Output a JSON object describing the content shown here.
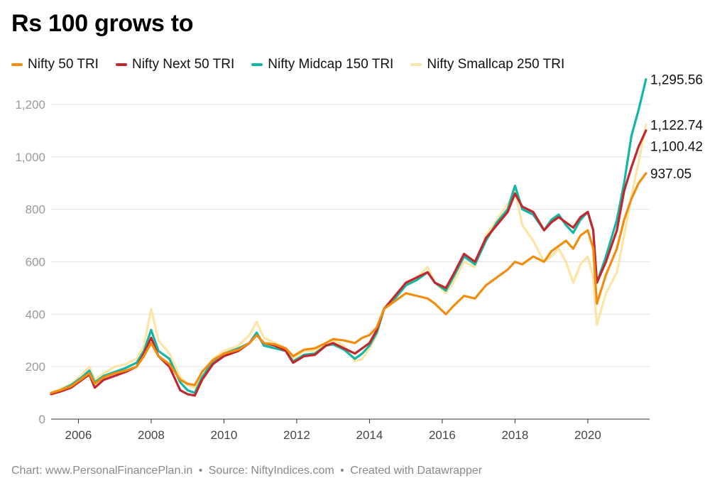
{
  "chart_data": {
    "type": "line",
    "title": "Rs 100 grows to",
    "xlabel": "",
    "ylabel": "",
    "xlim": [
      2005.25,
      2021.7
    ],
    "ylim": [
      0,
      1300
    ],
    "x_ticks": [
      "2006",
      "2008",
      "2010",
      "2012",
      "2014",
      "2016",
      "2018",
      "2020"
    ],
    "y_ticks": [
      "0",
      "200",
      "400",
      "600",
      "800",
      "1,000",
      "1,200"
    ],
    "legend_position": "top-left",
    "grid": "horizontal",
    "series": [
      {
        "name": "Nifty Smallcap 250 TRI",
        "color": "#fce5a4",
        "end_label": "1,122.74",
        "points": [
          [
            2005.25,
            100
          ],
          [
            2005.5,
            115
          ],
          [
            2005.8,
            135
          ],
          [
            2006.1,
            170
          ],
          [
            2006.3,
            200
          ],
          [
            2006.45,
            150
          ],
          [
            2006.7,
            175
          ],
          [
            2007.0,
            200
          ],
          [
            2007.3,
            210
          ],
          [
            2007.6,
            230
          ],
          [
            2007.8,
            280
          ],
          [
            2008.0,
            420
          ],
          [
            2008.2,
            300
          ],
          [
            2008.5,
            250
          ],
          [
            2008.8,
            160
          ],
          [
            2009.0,
            130
          ],
          [
            2009.2,
            120
          ],
          [
            2009.4,
            180
          ],
          [
            2009.7,
            230
          ],
          [
            2010.0,
            260
          ],
          [
            2010.4,
            280
          ],
          [
            2010.7,
            320
          ],
          [
            2010.9,
            370
          ],
          [
            2011.1,
            310
          ],
          [
            2011.4,
            290
          ],
          [
            2011.7,
            270
          ],
          [
            2011.9,
            230
          ],
          [
            2012.2,
            260
          ],
          [
            2012.5,
            260
          ],
          [
            2012.8,
            290
          ],
          [
            2013.0,
            300
          ],
          [
            2013.3,
            280
          ],
          [
            2013.6,
            220
          ],
          [
            2013.8,
            230
          ],
          [
            2014.0,
            270
          ],
          [
            2014.2,
            320
          ],
          [
            2014.4,
            420
          ],
          [
            2014.7,
            470
          ],
          [
            2015.0,
            510
          ],
          [
            2015.3,
            540
          ],
          [
            2015.6,
            580
          ],
          [
            2015.8,
            520
          ],
          [
            2016.1,
            480
          ],
          [
            2016.3,
            520
          ],
          [
            2016.6,
            600
          ],
          [
            2016.9,
            580
          ],
          [
            2017.2,
            700
          ],
          [
            2017.5,
            760
          ],
          [
            2017.8,
            820
          ],
          [
            2018.0,
            870
          ],
          [
            2018.2,
            740
          ],
          [
            2018.5,
            680
          ],
          [
            2018.8,
            600
          ],
          [
            2019.0,
            620
          ],
          [
            2019.2,
            650
          ],
          [
            2019.4,
            600
          ],
          [
            2019.6,
            520
          ],
          [
            2019.8,
            590
          ],
          [
            2020.0,
            620
          ],
          [
            2020.15,
            540
          ],
          [
            2020.25,
            360
          ],
          [
            2020.5,
            480
          ],
          [
            2020.8,
            560
          ],
          [
            2021.0,
            700
          ],
          [
            2021.2,
            850
          ],
          [
            2021.4,
            980
          ],
          [
            2021.6,
            1122.74
          ]
        ]
      },
      {
        "name": "Nifty Midcap 150 TRI",
        "color": "#15b5a4",
        "end_label": "1,295.56",
        "points": [
          [
            2005.25,
            100
          ],
          [
            2005.5,
            110
          ],
          [
            2005.8,
            130
          ],
          [
            2006.1,
            160
          ],
          [
            2006.3,
            185
          ],
          [
            2006.45,
            140
          ],
          [
            2006.7,
            165
          ],
          [
            2007.0,
            180
          ],
          [
            2007.3,
            195
          ],
          [
            2007.6,
            215
          ],
          [
            2007.8,
            260
          ],
          [
            2008.0,
            340
          ],
          [
            2008.2,
            260
          ],
          [
            2008.5,
            230
          ],
          [
            2008.8,
            140
          ],
          [
            2009.0,
            110
          ],
          [
            2009.2,
            100
          ],
          [
            2009.4,
            160
          ],
          [
            2009.7,
            220
          ],
          [
            2010.0,
            250
          ],
          [
            2010.4,
            270
          ],
          [
            2010.7,
            290
          ],
          [
            2010.9,
            330
          ],
          [
            2011.1,
            280
          ],
          [
            2011.4,
            270
          ],
          [
            2011.7,
            260
          ],
          [
            2011.9,
            220
          ],
          [
            2012.2,
            245
          ],
          [
            2012.5,
            250
          ],
          [
            2012.8,
            280
          ],
          [
            2013.0,
            285
          ],
          [
            2013.3,
            265
          ],
          [
            2013.6,
            230
          ],
          [
            2013.8,
            250
          ],
          [
            2014.0,
            280
          ],
          [
            2014.2,
            330
          ],
          [
            2014.4,
            420
          ],
          [
            2014.7,
            460
          ],
          [
            2015.0,
            510
          ],
          [
            2015.3,
            530
          ],
          [
            2015.6,
            560
          ],
          [
            2015.8,
            520
          ],
          [
            2016.1,
            490
          ],
          [
            2016.3,
            540
          ],
          [
            2016.6,
            620
          ],
          [
            2016.9,
            590
          ],
          [
            2017.2,
            680
          ],
          [
            2017.5,
            750
          ],
          [
            2017.8,
            800
          ],
          [
            2018.0,
            890
          ],
          [
            2018.2,
            800
          ],
          [
            2018.5,
            780
          ],
          [
            2018.8,
            720
          ],
          [
            2019.0,
            760
          ],
          [
            2019.2,
            780
          ],
          [
            2019.4,
            740
          ],
          [
            2019.6,
            710
          ],
          [
            2019.8,
            760
          ],
          [
            2020.0,
            790
          ],
          [
            2020.15,
            720
          ],
          [
            2020.25,
            520
          ],
          [
            2020.5,
            620
          ],
          [
            2020.8,
            760
          ],
          [
            2021.0,
            900
          ],
          [
            2021.2,
            1080
          ],
          [
            2021.4,
            1180
          ],
          [
            2021.6,
            1295.56
          ]
        ]
      },
      {
        "name": "Nifty Next 50 TRI",
        "color": "#c1272d",
        "end_label": "1,100.42",
        "points": [
          [
            2005.25,
            95
          ],
          [
            2005.5,
            105
          ],
          [
            2005.8,
            120
          ],
          [
            2006.1,
            150
          ],
          [
            2006.3,
            170
          ],
          [
            2006.45,
            120
          ],
          [
            2006.7,
            150
          ],
          [
            2007.0,
            165
          ],
          [
            2007.3,
            180
          ],
          [
            2007.6,
            200
          ],
          [
            2007.8,
            250
          ],
          [
            2008.0,
            310
          ],
          [
            2008.2,
            240
          ],
          [
            2008.5,
            200
          ],
          [
            2008.8,
            110
          ],
          [
            2009.0,
            95
          ],
          [
            2009.2,
            90
          ],
          [
            2009.4,
            150
          ],
          [
            2009.7,
            210
          ],
          [
            2010.0,
            240
          ],
          [
            2010.4,
            260
          ],
          [
            2010.7,
            290
          ],
          [
            2010.9,
            320
          ],
          [
            2011.1,
            290
          ],
          [
            2011.4,
            280
          ],
          [
            2011.7,
            260
          ],
          [
            2011.9,
            215
          ],
          [
            2012.2,
            240
          ],
          [
            2012.5,
            245
          ],
          [
            2012.8,
            280
          ],
          [
            2013.0,
            290
          ],
          [
            2013.3,
            270
          ],
          [
            2013.6,
            250
          ],
          [
            2013.8,
            270
          ],
          [
            2014.0,
            290
          ],
          [
            2014.2,
            340
          ],
          [
            2014.4,
            420
          ],
          [
            2014.7,
            470
          ],
          [
            2015.0,
            520
          ],
          [
            2015.3,
            540
          ],
          [
            2015.6,
            560
          ],
          [
            2015.8,
            520
          ],
          [
            2016.1,
            500
          ],
          [
            2016.3,
            550
          ],
          [
            2016.6,
            630
          ],
          [
            2016.9,
            600
          ],
          [
            2017.2,
            690
          ],
          [
            2017.5,
            740
          ],
          [
            2017.8,
            790
          ],
          [
            2018.0,
            860
          ],
          [
            2018.2,
            810
          ],
          [
            2018.5,
            790
          ],
          [
            2018.8,
            720
          ],
          [
            2019.0,
            750
          ],
          [
            2019.2,
            770
          ],
          [
            2019.4,
            750
          ],
          [
            2019.6,
            730
          ],
          [
            2019.8,
            770
          ],
          [
            2020.0,
            790
          ],
          [
            2020.15,
            720
          ],
          [
            2020.25,
            520
          ],
          [
            2020.5,
            600
          ],
          [
            2020.8,
            720
          ],
          [
            2021.0,
            870
          ],
          [
            2021.2,
            960
          ],
          [
            2021.4,
            1040
          ],
          [
            2021.6,
            1100.42
          ]
        ]
      },
      {
        "name": "Nifty 50 TRI",
        "color": "#f28c0f",
        "end_label": "937.05",
        "points": [
          [
            2005.25,
            100
          ],
          [
            2005.5,
            110
          ],
          [
            2005.8,
            125
          ],
          [
            2006.1,
            155
          ],
          [
            2006.3,
            175
          ],
          [
            2006.45,
            135
          ],
          [
            2006.7,
            160
          ],
          [
            2007.0,
            175
          ],
          [
            2007.3,
            185
          ],
          [
            2007.6,
            200
          ],
          [
            2007.8,
            240
          ],
          [
            2008.0,
            290
          ],
          [
            2008.2,
            240
          ],
          [
            2008.5,
            210
          ],
          [
            2008.8,
            150
          ],
          [
            2009.0,
            135
          ],
          [
            2009.2,
            130
          ],
          [
            2009.4,
            180
          ],
          [
            2009.7,
            225
          ],
          [
            2010.0,
            250
          ],
          [
            2010.4,
            265
          ],
          [
            2010.7,
            290
          ],
          [
            2010.9,
            320
          ],
          [
            2011.1,
            290
          ],
          [
            2011.4,
            285
          ],
          [
            2011.7,
            270
          ],
          [
            2011.9,
            240
          ],
          [
            2012.2,
            265
          ],
          [
            2012.5,
            270
          ],
          [
            2012.8,
            290
          ],
          [
            2013.0,
            305
          ],
          [
            2013.3,
            300
          ],
          [
            2013.6,
            290
          ],
          [
            2013.8,
            310
          ],
          [
            2014.0,
            320
          ],
          [
            2014.2,
            350
          ],
          [
            2014.4,
            420
          ],
          [
            2014.7,
            450
          ],
          [
            2015.0,
            480
          ],
          [
            2015.3,
            470
          ],
          [
            2015.6,
            460
          ],
          [
            2015.8,
            440
          ],
          [
            2016.1,
            400
          ],
          [
            2016.3,
            430
          ],
          [
            2016.6,
            470
          ],
          [
            2016.9,
            460
          ],
          [
            2017.2,
            510
          ],
          [
            2017.5,
            540
          ],
          [
            2017.8,
            570
          ],
          [
            2018.0,
            600
          ],
          [
            2018.2,
            590
          ],
          [
            2018.5,
            620
          ],
          [
            2018.8,
            600
          ],
          [
            2019.0,
            640
          ],
          [
            2019.2,
            660
          ],
          [
            2019.4,
            680
          ],
          [
            2019.6,
            650
          ],
          [
            2019.8,
            700
          ],
          [
            2020.0,
            720
          ],
          [
            2020.15,
            650
          ],
          [
            2020.25,
            440
          ],
          [
            2020.5,
            550
          ],
          [
            2020.8,
            650
          ],
          [
            2021.0,
            760
          ],
          [
            2021.2,
            840
          ],
          [
            2021.4,
            900
          ],
          [
            2021.6,
            937.05
          ]
        ]
      }
    ]
  },
  "footer": {
    "chart_credit": "Chart: www.PersonalFinancePlan.in",
    "source": "Source: NiftyIndices.com",
    "created": "Created with Datawrapper",
    "separator": "•"
  }
}
